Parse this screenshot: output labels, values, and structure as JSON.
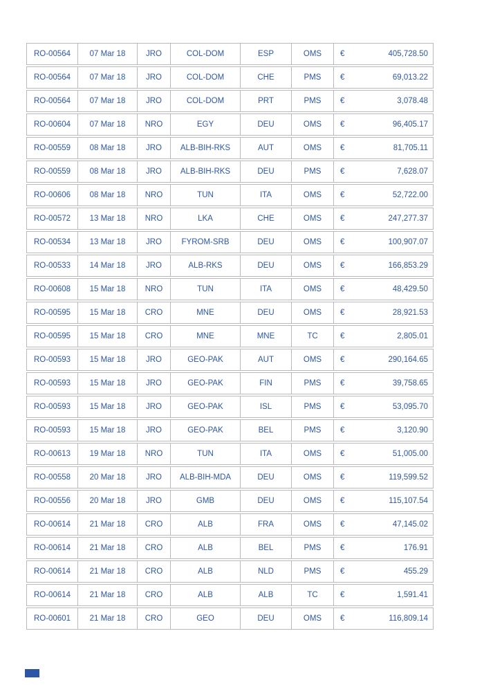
{
  "colors": {
    "text_blue": "#2d57a4",
    "border_gray": "#b9b9bc",
    "footer_mark_blue": "#2d55a5",
    "page_background": "#ffffff"
  },
  "table": {
    "currency_symbol": "€",
    "rows": [
      [
        "RO-00564",
        "07 Mar 18",
        "JRO",
        "COL-DOM",
        "ESP",
        "OMS",
        "€",
        "405,728.50"
      ],
      [
        "RO-00564",
        "07 Mar 18",
        "JRO",
        "COL-DOM",
        "CHE",
        "PMS",
        "€",
        "69,013.22"
      ],
      [
        "RO-00564",
        "07 Mar 18",
        "JRO",
        "COL-DOM",
        "PRT",
        "PMS",
        "€",
        "3,078.48"
      ],
      [
        "RO-00604",
        "07 Mar 18",
        "NRO",
        "EGY",
        "DEU",
        "OMS",
        "€",
        "96,405.17"
      ],
      [
        "RO-00559",
        "08 Mar 18",
        "JRO",
        "ALB-BIH-RKS",
        "AUT",
        "OMS",
        "€",
        "81,705.11"
      ],
      [
        "RO-00559",
        "08 Mar 18",
        "JRO",
        "ALB-BIH-RKS",
        "DEU",
        "PMS",
        "€",
        "7,628.07"
      ],
      [
        "RO-00606",
        "08 Mar 18",
        "NRO",
        "TUN",
        "ITA",
        "OMS",
        "€",
        "52,722.00"
      ],
      [
        "RO-00572",
        "13 Mar 18",
        "NRO",
        "LKA",
        "CHE",
        "OMS",
        "€",
        "247,277.37"
      ],
      [
        "RO-00534",
        "13 Mar 18",
        "JRO",
        "FYROM-SRB",
        "DEU",
        "OMS",
        "€",
        "100,907.07"
      ],
      [
        "RO-00533",
        "14 Mar 18",
        "JRO",
        "ALB-RKS",
        "DEU",
        "OMS",
        "€",
        "166,853.29"
      ],
      [
        "RO-00608",
        "15 Mar 18",
        "NRO",
        "TUN",
        "ITA",
        "OMS",
        "€",
        "48,429.50"
      ],
      [
        "RO-00595",
        "15 Mar 18",
        "CRO",
        "MNE",
        "DEU",
        "OMS",
        "€",
        "28,921.53"
      ],
      [
        "RO-00595",
        "15 Mar 18",
        "CRO",
        "MNE",
        "MNE",
        "TC",
        "€",
        "2,805.01"
      ],
      [
        "RO-00593",
        "15 Mar 18",
        "JRO",
        "GEO-PAK",
        "AUT",
        "OMS",
        "€",
        "290,164.65"
      ],
      [
        "RO-00593",
        "15 Mar 18",
        "JRO",
        "GEO-PAK",
        "FIN",
        "PMS",
        "€",
        "39,758.65"
      ],
      [
        "RO-00593",
        "15 Mar 18",
        "JRO",
        "GEO-PAK",
        "ISL",
        "PMS",
        "€",
        "53,095.70"
      ],
      [
        "RO-00593",
        "15 Mar 18",
        "JRO",
        "GEO-PAK",
        "BEL",
        "PMS",
        "€",
        "3,120.90"
      ],
      [
        "RO-00613",
        "19 Mar 18",
        "NRO",
        "TUN",
        "ITA",
        "OMS",
        "€",
        "51,005.00"
      ],
      [
        "RO-00558",
        "20 Mar 18",
        "JRO",
        "ALB-BIH-MDA",
        "DEU",
        "OMS",
        "€",
        "119,599.52"
      ],
      [
        "RO-00556",
        "20 Mar 18",
        "JRO",
        "GMB",
        "DEU",
        "OMS",
        "€",
        "115,107.54"
      ],
      [
        "RO-00614",
        "21 Mar 18",
        "CRO",
        "ALB",
        "FRA",
        "OMS",
        "€",
        "47,145.02"
      ],
      [
        "RO-00614",
        "21 Mar 18",
        "CRO",
        "ALB",
        "BEL",
        "PMS",
        "€",
        "176.91"
      ],
      [
        "RO-00614",
        "21 Mar 18",
        "CRO",
        "ALB",
        "NLD",
        "PMS",
        "€",
        "455.29"
      ],
      [
        "RO-00614",
        "21 Mar 18",
        "CRO",
        "ALB",
        "ALB",
        "TC",
        "€",
        "1,591.41"
      ],
      [
        "RO-00601",
        "21 Mar 18",
        "CRO",
        "GEO",
        "DEU",
        "OMS",
        "€",
        "116,809.14"
      ]
    ]
  }
}
